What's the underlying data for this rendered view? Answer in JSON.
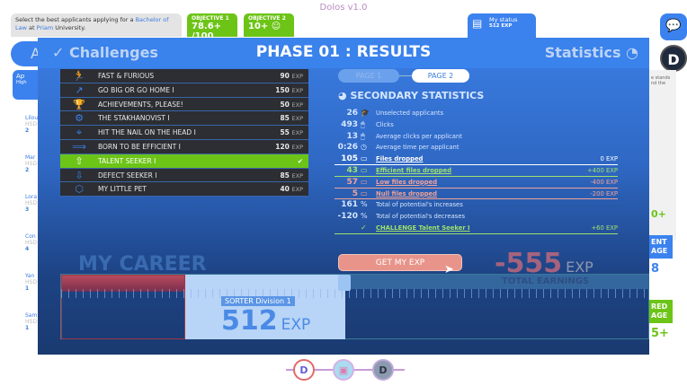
{
  "app_title": "Dolos v1.0",
  "task": {
    "prefix": "Select the best applicants applying for a ",
    "degree": "Bachelor of Law",
    "mid": " at ",
    "university": "Priam",
    "suffix": " University."
  },
  "objectives": [
    {
      "label": "OBJECTIVE 1",
      "value": "78.6+ /100"
    },
    {
      "label": "OBJECTIVE 2",
      "value": "10+ ☺"
    }
  ],
  "my_status": {
    "label": "My status",
    "value": "512 EXP"
  },
  "background": {
    "tab_fragment": "A",
    "applicant_fragment": "Ap",
    "applicant_sub": "High",
    "candidates": [
      {
        "name": "Lilou",
        "school": "HSD",
        "count": "2"
      },
      {
        "name": "Mar",
        "school": "HSD",
        "count": "2"
      },
      {
        "name": "Lora",
        "school": "HSD",
        "count": "3"
      },
      {
        "name": "Con",
        "school": "HSD",
        "count": "4"
      },
      {
        "name": "Yan",
        "school": "HSD",
        "count": "1"
      },
      {
        "name": "Sam",
        "school": "HSD",
        "count": "1"
      }
    ],
    "right_labels": [
      "ENT AGE",
      "RED AGE"
    ],
    "right_values": [
      "0+",
      "8",
      "5+"
    ],
    "right_text": "e stands nd the"
  },
  "modal": {
    "left_tab": "Challenges",
    "title": "PHASE 01 : RESULTS",
    "right_tab": "Statistics",
    "challenges": [
      {
        "name": "FAST & FURIOUS",
        "exp": "90",
        "icon": "runner-icon"
      },
      {
        "name": "GO BIG OR GO HOME I",
        "exp": "150",
        "icon": "trend-up-icon"
      },
      {
        "name": "ACHIEVEMENTS, PLEASE!",
        "exp": "50",
        "icon": "trophy-icon"
      },
      {
        "name": "THE STAKHANOVIST I",
        "exp": "85",
        "icon": "gear-icon"
      },
      {
        "name": "HIT THE NAIL ON THE HEAD I",
        "exp": "55",
        "icon": "target-folder-icon"
      },
      {
        "name": "BORN TO BE EFFICIENT I",
        "exp": "120",
        "icon": "efficient-icon"
      },
      {
        "name": "TALENT SEEKER I",
        "exp": "",
        "completed": true,
        "icon": "talent-up-icon"
      },
      {
        "name": "DEFECT SEEKER I",
        "exp": "85",
        "icon": "defect-down-icon"
      },
      {
        "name": "MY LITTLE PET",
        "exp": "40",
        "icon": "pet-badge-icon"
      }
    ],
    "exp_unit": "EXP",
    "pages": [
      "PAGE 1",
      "PAGE 2"
    ],
    "active_page": 2,
    "secondary_title": "SECONDARY STATISTICS",
    "stats": [
      {
        "value": "26",
        "label": "Unselected applicants",
        "icon": "graduation-cap-icon"
      },
      {
        "value": "493",
        "label": "Clicks",
        "icon": "mouse-icon"
      },
      {
        "value": "13",
        "label": "Average clicks per applicant",
        "icon": "mouse-icon"
      },
      {
        "value": "0:26",
        "label": "Average time per applicant",
        "icon": "clock-icon"
      },
      {
        "value": "105",
        "label": "Files dropped",
        "exp": "0 EXP",
        "style": "w",
        "icon": "folder-icon"
      },
      {
        "value": "43",
        "label": "Efficient files dropped",
        "exp": "+400 EXP",
        "style": "g",
        "icon": "folder-icon"
      },
      {
        "value": "57",
        "label": "Low files dropped",
        "exp": "-400 EXP",
        "style": "r",
        "icon": "folder-icon"
      },
      {
        "value": "5",
        "label": "Null files dropped",
        "exp": "-200 EXP",
        "style": "r",
        "icon": "folder-icon"
      },
      {
        "value": "161",
        "label": "Total of potential's increases",
        "icon": "percent-icon"
      },
      {
        "value": "-120",
        "label": "Total of potential's decreases",
        "icon": "percent-icon"
      },
      {
        "value": "",
        "label": "CHALLENGE Talent Seeker I",
        "exp": "+60 EXP",
        "style": "g",
        "icon": "check-circle-icon"
      }
    ],
    "career_title": "MY CAREER",
    "get_exp_button": "GET MY EXP",
    "total_earnings": {
      "value": "-555",
      "unit": "EXP",
      "label": "TOTAL EARNINGS"
    },
    "rank": {
      "title": "SORTER",
      "division": "Division 1",
      "exp": "512",
      "unit": "EXP"
    }
  },
  "colors": {
    "accent": "#3a82ec",
    "success": "#6cc417",
    "danger": "#e8948a"
  }
}
